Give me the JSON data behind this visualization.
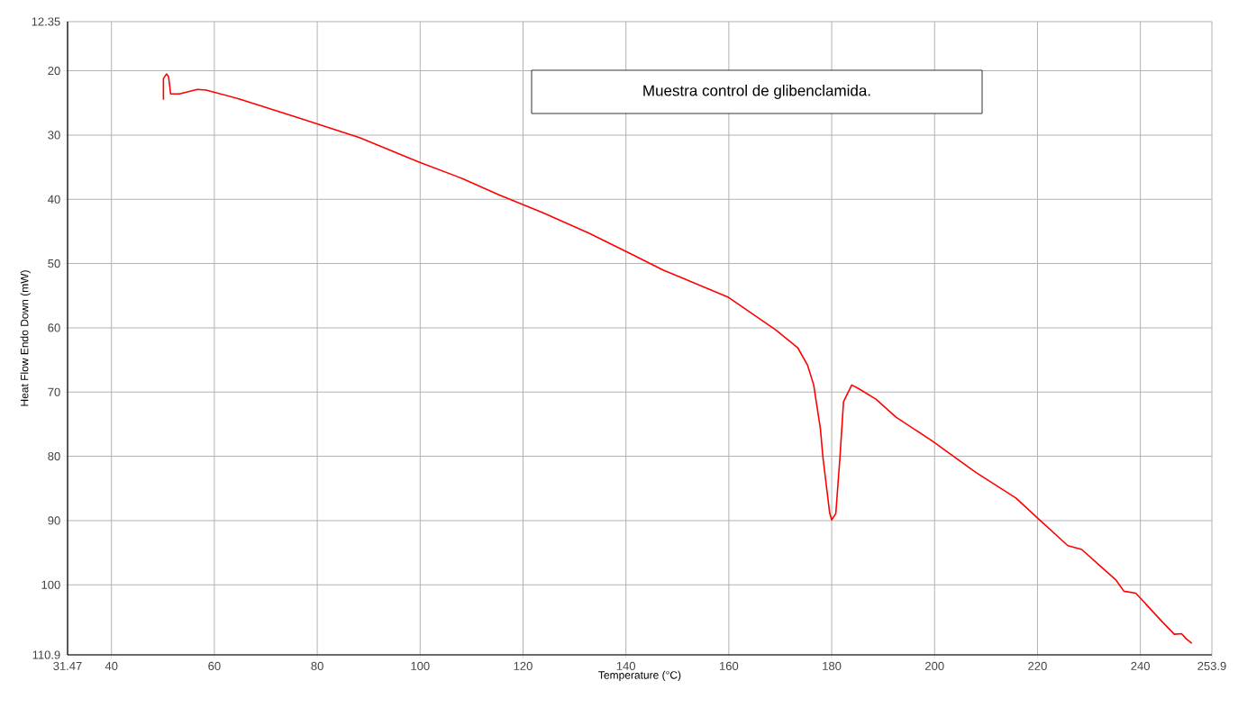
{
  "chart_data": {
    "type": "line",
    "xlabel": "Temperature (°C)",
    "ylabel": "Heat Flow Endo Down (mW)",
    "annotations": [
      "Muestra control de glibenclamida."
    ],
    "xlim": [
      31.47,
      253.9
    ],
    "ylim": [
      110.9,
      12.35
    ],
    "xticks": [
      31.47,
      40,
      60,
      80,
      100,
      120,
      140,
      160,
      180,
      200,
      220,
      240,
      253.9
    ],
    "yticks": [
      12.35,
      20,
      30,
      40,
      50,
      60,
      70,
      80,
      90,
      100,
      110.9
    ],
    "grid": true,
    "marker": "none",
    "line_style": "solid",
    "series": [
      {
        "color": "#ff0000",
        "x": [
          50.1,
          50.1,
          50.7,
          51.1,
          51.5,
          53.2,
          56.7,
          58.4,
          64.9,
          76.6,
          88.2,
          99.7,
          108.3,
          115.3,
          123.9,
          132.6,
          141.2,
          147.2,
          159.8,
          169.1,
          173.4,
          175.3,
          176.5,
          177.8,
          178.3,
          179.6,
          180.0,
          180.8,
          181.6,
          182.3,
          183.9,
          185.1,
          188.6,
          192.5,
          199.5,
          208.0,
          215.8,
          220.4,
          225.9,
          228.6,
          232.1,
          235.2,
          236.8,
          239.1,
          244.3,
          246.6,
          248.0,
          248.9,
          250.0
        ],
        "values": [
          24.5,
          21.2,
          20.5,
          20.9,
          23.6,
          23.6,
          22.9,
          23.0,
          24.4,
          27.4,
          30.4,
          34.2,
          36.8,
          39.3,
          42.1,
          45.2,
          48.6,
          51.0,
          55.2,
          60.3,
          63.1,
          65.8,
          68.9,
          75.7,
          80.2,
          88.8,
          89.9,
          88.9,
          80.2,
          71.5,
          68.9,
          69.4,
          71.1,
          73.9,
          77.6,
          82.5,
          86.5,
          89.9,
          93.9,
          94.5,
          97.0,
          99.2,
          101.0,
          101.3,
          105.8,
          107.7,
          107.6,
          108.4,
          109.1
        ]
      }
    ]
  }
}
